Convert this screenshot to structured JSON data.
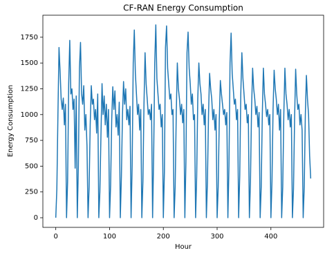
{
  "chart_data": {
    "type": "line",
    "title": "CF-RAN Energy Consumption",
    "x_label": "Hour",
    "y_label": "Energy Consumption",
    "xlim": [
      -24,
      498
    ],
    "ylim": [
      -93.5,
      1963.5
    ],
    "xticks": [
      0,
      100,
      200,
      300,
      400
    ],
    "yticks": [
      0,
      250,
      500,
      750,
      1000,
      1250,
      1500,
      1750
    ],
    "grid": false,
    "x": [
      0,
      2,
      4,
      6,
      8,
      10,
      12,
      14,
      16,
      18,
      20,
      22,
      24,
      26,
      28,
      30,
      32,
      34,
      36,
      38,
      40,
      42,
      44,
      46,
      48,
      50,
      52,
      54,
      56,
      58,
      60,
      62,
      64,
      66,
      68,
      70,
      72,
      74,
      76,
      78,
      80,
      82,
      84,
      86,
      88,
      90,
      92,
      94,
      96,
      98,
      100,
      102,
      104,
      106,
      108,
      110,
      112,
      114,
      116,
      118,
      120,
      122,
      124,
      126,
      128,
      130,
      132,
      134,
      136,
      138,
      140,
      142,
      144,
      146,
      148,
      150,
      152,
      154,
      156,
      158,
      160,
      162,
      164,
      166,
      168,
      170,
      172,
      174,
      176,
      178,
      180,
      182,
      184,
      186,
      188,
      190,
      192,
      194,
      196,
      198,
      200,
      202,
      204,
      206,
      208,
      210,
      212,
      214,
      216,
      218,
      220,
      222,
      224,
      226,
      228,
      230,
      232,
      234,
      236,
      238,
      240,
      242,
      244,
      246,
      248,
      250,
      252,
      254,
      256,
      258,
      260,
      262,
      264,
      266,
      268,
      270,
      272,
      274,
      276,
      278,
      280,
      282,
      284,
      286,
      288,
      290,
      292,
      294,
      296,
      298,
      300,
      302,
      304,
      306,
      308,
      310,
      312,
      314,
      316,
      318,
      320,
      322,
      324,
      326,
      328,
      330,
      332,
      334,
      336,
      338,
      340,
      342,
      344,
      346,
      348,
      350,
      352,
      354,
      356,
      358,
      360,
      362,
      364,
      366,
      368,
      370,
      372,
      374,
      376,
      378,
      380,
      382,
      384,
      386,
      388,
      390,
      392,
      394,
      396,
      398,
      400,
      402,
      404,
      406,
      408,
      410,
      412,
      414,
      416,
      418,
      420,
      422,
      424,
      426,
      428,
      430,
      432,
      434,
      436,
      438,
      440,
      442,
      444,
      446,
      448,
      450,
      452,
      454,
      456,
      458,
      460,
      462,
      464,
      466,
      468,
      470,
      472,
      474
    ],
    "series": [
      {
        "name": "Energy Consumption",
        "color": "#1f77b4",
        "values": [
          0,
          280,
          1000,
          1650,
          1420,
          1150,
          1050,
          1160,
          900,
          1100,
          0,
          350,
          1300,
          1720,
          1200,
          1250,
          1050,
          1150,
          480,
          1180,
          0,
          500,
          1450,
          1700,
          1200,
          1100,
          1280,
          850,
          1000,
          700,
          0,
          300,
          900,
          1280,
          1100,
          1150,
          950,
          1050,
          820,
          1200,
          0,
          250,
          800,
          1300,
          1000,
          1180,
          900,
          1100,
          780,
          1050,
          0,
          320,
          950,
          1270,
          1050,
          1230,
          880,
          1000,
          800,
          1120,
          0,
          400,
          1000,
          1320,
          1100,
          1250,
          950,
          1050,
          900,
          1080,
          0,
          500,
          1500,
          1820,
          1400,
          1200,
          1000,
          1100,
          850,
          1050,
          0,
          350,
          1100,
          1600,
          1300,
          1150,
          1000,
          1050,
          950,
          1100,
          0,
          600,
          1500,
          1870,
          1350,
          1200,
          1050,
          1100,
          880,
          1000,
          0,
          450,
          1650,
          1860,
          1450,
          1300,
          1150,
          1200,
          1000,
          1050,
          0,
          300,
          1000,
          1500,
          1250,
          1150,
          1000,
          1100,
          920,
          1050,
          0,
          550,
          1600,
          1800,
          1450,
          1300,
          1100,
          1200,
          950,
          1000,
          0,
          400,
          1150,
          1500,
          1300,
          1200,
          1000,
          1100,
          900,
          1050,
          0,
          350,
          1000,
          1400,
          1250,
          1150,
          950,
          1050,
          850,
          1000,
          0,
          300,
          950,
          1330,
          1200,
          1100,
          1000,
          1050,
          900,
          1020,
          0,
          500,
          1500,
          1790,
          1400,
          1250,
          1100,
          1150,
          950,
          1050,
          0,
          400,
          1200,
          1600,
          1350,
          1200,
          1050,
          1100,
          920,
          1000,
          0,
          350,
          1050,
          1450,
          1250,
          1150,
          1000,
          1080,
          880,
          1020,
          0,
          300,
          1000,
          1450,
          1200,
          1100,
          980,
          1050,
          900,
          1000,
          0,
          350,
          1050,
          1430,
          1250,
          1150,
          1000,
          1100,
          850,
          1050,
          0,
          300,
          1000,
          1450,
          1200,
          1100,
          950,
          1050,
          880,
          1000,
          0,
          280,
          950,
          1440,
          1200,
          1050,
          1100,
          900,
          1000,
          850,
          0,
          300,
          1000,
          1380,
          1150,
          1000,
          600,
          380
        ]
      }
    ]
  }
}
